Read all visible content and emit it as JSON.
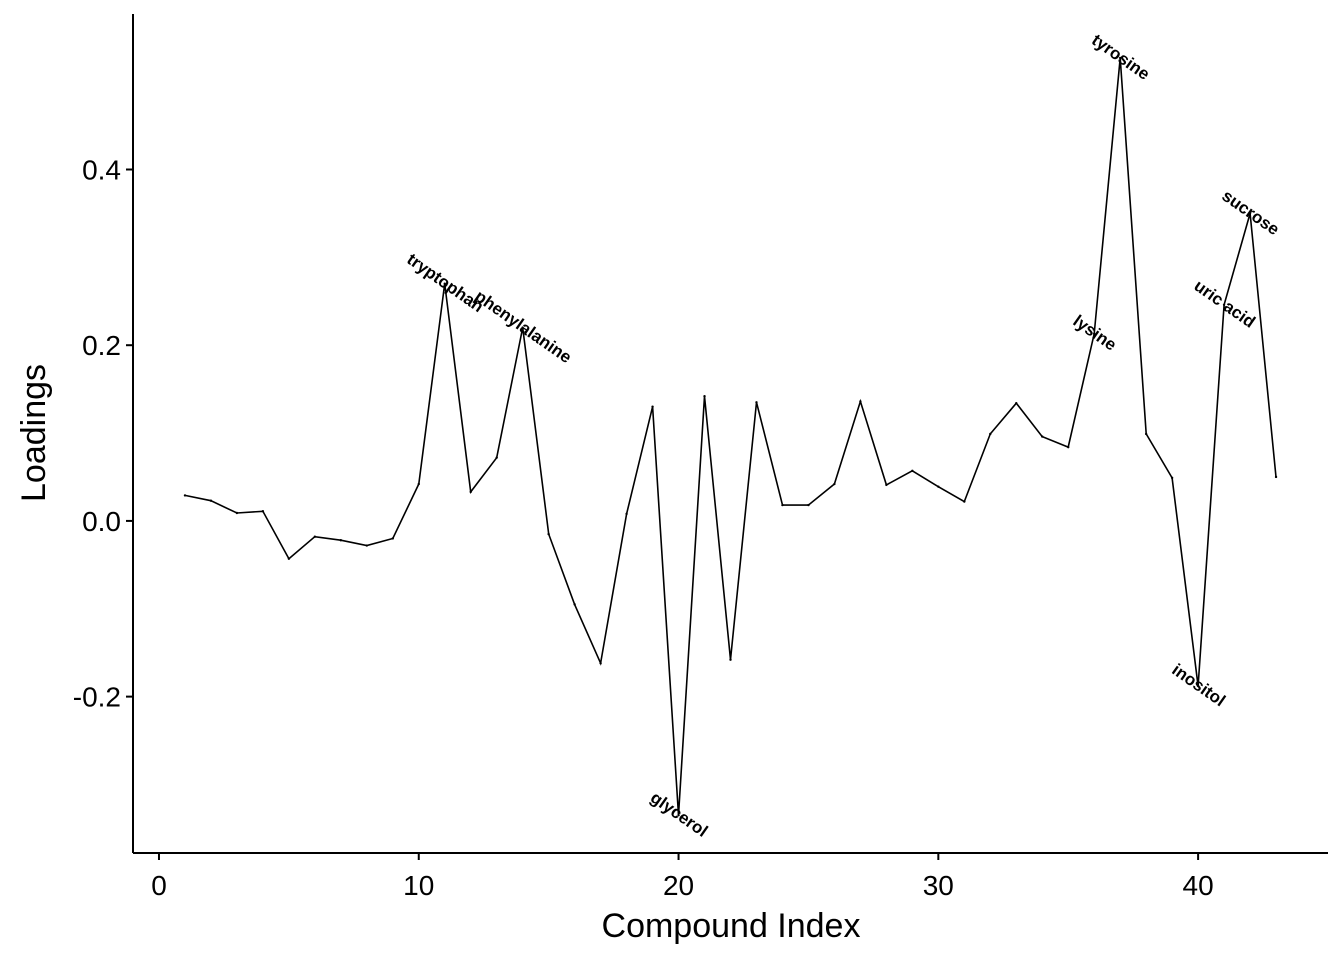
{
  "chart_data": {
    "type": "line",
    "xlabel": "Compound Index",
    "ylabel": "Loadings",
    "xlim": [
      -1,
      45
    ],
    "ylim": [
      -0.378,
      0.577
    ],
    "xticks": [
      0,
      10,
      20,
      30,
      40
    ],
    "xtick_labels": [
      "0",
      "10",
      "20",
      "30",
      "40"
    ],
    "yticks": [
      -0.2,
      0.0,
      0.2,
      0.4
    ],
    "ytick_labels": [
      "-0.2",
      "0.0",
      "0.2",
      "0.4"
    ],
    "grid": false,
    "x": [
      1,
      2,
      3,
      4,
      5,
      6,
      7,
      8,
      9,
      10,
      11,
      12,
      13,
      14,
      15,
      16,
      17,
      18,
      19,
      20,
      21,
      22,
      23,
      24,
      25,
      26,
      27,
      28,
      29,
      30,
      31,
      32,
      33,
      34,
      35,
      36,
      37,
      38,
      39,
      40,
      41,
      42,
      43
    ],
    "y": [
      0.029,
      0.023,
      0.009,
      0.011,
      -0.043,
      -0.018,
      -0.022,
      -0.028,
      -0.02,
      0.042,
      0.27,
      0.033,
      0.072,
      0.22,
      -0.015,
      -0.095,
      -0.162,
      0.008,
      0.13,
      -0.335,
      0.142,
      -0.158,
      0.135,
      0.018,
      0.018,
      0.042,
      0.136,
      0.041,
      0.057,
      0.039,
      0.022,
      0.099,
      0.134,
      0.096,
      0.084,
      0.213,
      0.527,
      0.099,
      0.049,
      -0.188,
      0.246,
      0.35,
      0.05
    ],
    "annotations": [
      {
        "text": "tryptophan",
        "x": 11,
        "y": 0.27
      },
      {
        "text": "phenylalanine",
        "x": 14,
        "y": 0.22
      },
      {
        "text": "glycerol",
        "x": 20,
        "y": -0.335
      },
      {
        "text": "lysine",
        "x": 36,
        "y": 0.213
      },
      {
        "text": "tyrosine",
        "x": 37,
        "y": 0.527
      },
      {
        "text": "inositol",
        "x": 40,
        "y": -0.188
      },
      {
        "text": "uric acid",
        "x": 41,
        "y": 0.246
      },
      {
        "text": "sucrose",
        "x": 42,
        "y": 0.35
      }
    ]
  }
}
